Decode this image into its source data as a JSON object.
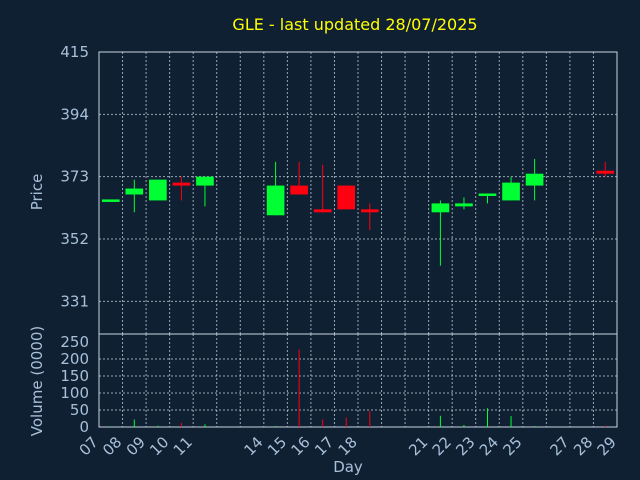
{
  "chart_data": [
    {
      "type": "candlestick",
      "title": "GLE - last updated 28/07/2025",
      "ylabel": "Price",
      "yticks": [
        415,
        394,
        373,
        352,
        331
      ],
      "ylim": [
        320,
        415
      ],
      "x_categories": [
        "07",
        "08",
        "09",
        "10",
        "11",
        "14",
        "15",
        "16",
        "17",
        "18",
        "21",
        "22",
        "23",
        "24",
        "25",
        "28"
      ],
      "ohlc": [
        {
          "day": "07",
          "open": 365,
          "high": 365,
          "low": 365,
          "close": 365
        },
        {
          "day": "08",
          "open": 367,
          "high": 372,
          "low": 361,
          "close": 369
        },
        {
          "day": "09",
          "open": 365,
          "high": 372,
          "low": 365,
          "close": 372
        },
        {
          "day": "10",
          "open": 371,
          "high": 373,
          "low": 365,
          "close": 370
        },
        {
          "day": "11",
          "open": 370,
          "high": 373,
          "low": 363,
          "close": 373
        },
        {
          "day": "14",
          "open": 360,
          "high": 378,
          "low": 360,
          "close": 370
        },
        {
          "day": "15",
          "open": 370,
          "high": 378,
          "low": 367,
          "close": 367
        },
        {
          "day": "16",
          "open": 362,
          "high": 377,
          "low": 361,
          "close": 361
        },
        {
          "day": "17",
          "open": 370,
          "high": 370,
          "low": 362,
          "close": 362
        },
        {
          "day": "18",
          "open": 362,
          "high": 364,
          "low": 355,
          "close": 361
        },
        {
          "day": "21",
          "open": 361,
          "high": 365,
          "low": 343,
          "close": 364
        },
        {
          "day": "22",
          "open": 363,
          "high": 366,
          "low": 362,
          "close": 364
        },
        {
          "day": "23",
          "open": 367,
          "high": 367,
          "low": 364,
          "close": 367
        },
        {
          "day": "24",
          "open": 365,
          "high": 373,
          "low": 365,
          "close": 371
        },
        {
          "day": "25",
          "open": 370,
          "high": 379,
          "low": 365,
          "close": 374
        },
        {
          "day": "28",
          "open": 375,
          "high": 378,
          "low": 373,
          "close": 374
        }
      ]
    },
    {
      "type": "bar",
      "ylabel": "Volume (0000)",
      "xlabel": "Day",
      "yticks": [
        0,
        50,
        100,
        150,
        200,
        250
      ],
      "ylim": [
        0,
        250
      ],
      "x_tick_labels": [
        "07",
        "08",
        "09",
        "10",
        "11",
        "14",
        "15",
        "16",
        "17",
        "18",
        "21",
        "22",
        "23",
        "24",
        "25",
        "27",
        "28",
        "29"
      ],
      "volumes": [
        {
          "day": "07",
          "value": 2
        },
        {
          "day": "08",
          "value": 22
        },
        {
          "day": "09",
          "value": 4
        },
        {
          "day": "10",
          "value": 12
        },
        {
          "day": "11",
          "value": 8
        },
        {
          "day": "14",
          "value": 3
        },
        {
          "day": "15",
          "value": 228
        },
        {
          "day": "16",
          "value": 22
        },
        {
          "day": "17",
          "value": 28
        },
        {
          "day": "18",
          "value": 47
        },
        {
          "day": "21",
          "value": 33
        },
        {
          "day": "22",
          "value": 6
        },
        {
          "day": "23",
          "value": 55
        },
        {
          "day": "24",
          "value": 32
        },
        {
          "day": "25",
          "value": 3
        },
        {
          "day": "28",
          "value": 4
        }
      ]
    }
  ],
  "colors": {
    "background": "#0f2033",
    "title": "#ffff00",
    "up": "#00ff33",
    "down": "#ff0011",
    "text": "#a8c0d8"
  }
}
